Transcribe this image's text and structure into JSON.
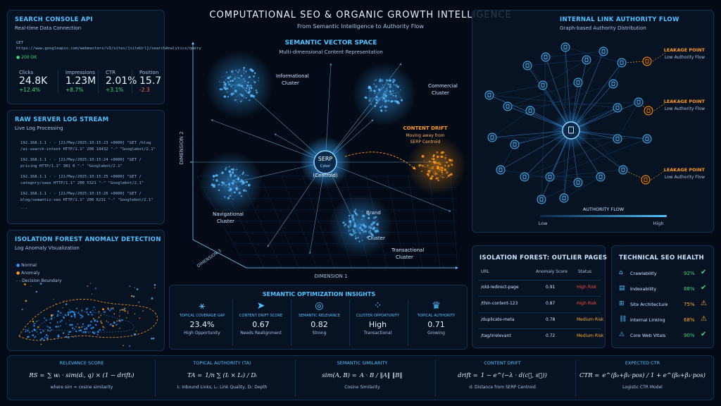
{
  "header": {
    "title": "COMPUTATIONAL SEO & ORGANIC GROWTH INTELLIGENCE",
    "subtitle": "From Semantic Intelligence to Authority Flow"
  },
  "search_console": {
    "title": "SEARCH CONSOLE API",
    "subtitle": "Real-time Data Connection",
    "request": "GET https://www.googleapis.com/webmasters/v3/sites/{siteUrl}/searchAnalytics/query",
    "status": "200 OK",
    "metrics": [
      {
        "label": "Clicks",
        "value": "24.8K",
        "delta": "+12.4%"
      },
      {
        "label": "Impressions",
        "value": "1.23M",
        "delta": "+8.7%"
      },
      {
        "label": "CTR",
        "value": "2.01%",
        "delta": "+3.1%"
      },
      {
        "label": "Position",
        "value": "15.7",
        "delta": "-2.3"
      }
    ]
  },
  "server_logs": {
    "title": "RAW SERVER LOG STREAM",
    "subtitle": "Live Log Processing",
    "lines": [
      [
        "192.168.1.1 - - [21/May/2025:10:15:23 +0000] \"GET /blog",
        "/ai-search-intent HTTP/1.1\" 200 18432 \"-\" \"Googlebot/2.1\""
      ],
      [
        "192.168.1.1 - - [21/May/2025:10:15:24 +0000] \"GET /",
        "pricing HTTP/1.1\" 301 0 \"-\" \"Googlebot/2.1\""
      ],
      [
        "192.168.1.1 - - [21/May/2025:10:15:25 +0000] \"GET /",
        "category/saas HTTP/1.1\" 200 5321 \"-\" \"Googlebot/2.1\""
      ],
      [
        "192.168.1.1 - - [21/May/2025:10:15:26 +0000] \"GET /",
        "blog/semantic-seo HTTP/1.1\" 200 6231 \"-\" \"Googlebot/2.1\""
      ]
    ],
    "ellipsis": "..."
  },
  "anomaly": {
    "title": "ISOLATION FOREST ANOMALY DETECTION",
    "subtitle": "Log Anomaly Visualization",
    "legend": [
      "Normal",
      "Anomaly",
      "Decision Boundary"
    ]
  },
  "vector_space": {
    "title": "SEMANTIC VECTOR SPACE",
    "subtitle": "Multi-dimensional Content Representation",
    "axis_y": "DIMENSION 2",
    "axis_x": "DIMENSION 1",
    "axis_z": "DIMENSION 3",
    "center_top": "SERP",
    "center_mid": "Cyber",
    "center_bottom": "(Centroid)",
    "clusters": {
      "informational": [
        "Informational",
        "Cluster"
      ],
      "commercial": [
        "Commercial",
        "Cluster"
      ],
      "navigational": [
        "Navigational",
        "Cluster"
      ],
      "brand": [
        "Brand",
        "Cluster"
      ],
      "transactional": [
        "Transactional",
        "Cluster"
      ]
    },
    "drift": {
      "title": "CONTENT DRIFT",
      "line1": "Moving away from",
      "line2": "SERP Centroid"
    }
  },
  "link_authority": {
    "title": "INTERNAL LINK AUTHORITY FLOW",
    "subtitle": "Graph-based Authority Distribution",
    "leakage_title": "LEAKAGE POINT",
    "leakage_sub": "Low Authority Flow",
    "flow_label": "AUTHORITY FLOW",
    "low": "Low",
    "high": "High"
  },
  "insights": {
    "title": "SEMANTIC OPTIMIZATION INSIGHTS",
    "cards": [
      {
        "label": "TOPICAL COVERAGE GAP",
        "value": "23.4%",
        "sub": "High Opportunity",
        "icon": "network-icon"
      },
      {
        "label": "CONTENT DRIFT SCORE",
        "value": "0.67",
        "sub": "Needs Realignment",
        "icon": "send-icon"
      },
      {
        "label": "SEMANTIC RELEVANCE",
        "value": "0.82",
        "sub": "Strong",
        "icon": "target-icon"
      },
      {
        "label": "CLUSTER OPPORTUNITY",
        "value": "High",
        "sub": "Transactional",
        "icon": "cluster-icon"
      },
      {
        "label": "TOPICAL AUTHORITY",
        "value": "0.71",
        "sub": "Growing",
        "icon": "crown-icon"
      }
    ]
  },
  "outliers": {
    "title": "ISOLATION FOREST: OUTLIER PAGES",
    "headers": [
      "URL",
      "Anomaly Score",
      "Status"
    ],
    "rows": [
      {
        "url": "/old-redirect-page",
        "score": "0.91",
        "status": "High Risk",
        "level": "high"
      },
      {
        "url": "/thin-content-123",
        "score": "0.87",
        "status": "High Risk",
        "level": "high"
      },
      {
        "url": "/duplicate-meta",
        "score": "0.78",
        "status": "Medium Risk",
        "level": "med"
      },
      {
        "url": "/tag/irrelevant",
        "score": "0.72",
        "status": "Medium Risk",
        "level": "med"
      }
    ]
  },
  "tech_health": {
    "title": "TECHNICAL SEO HEALTH",
    "rows": [
      {
        "label": "Crawlability",
        "value": "92%",
        "state": "ok",
        "icon": "home-icon"
      },
      {
        "label": "Indexability",
        "value": "88%",
        "state": "ok",
        "icon": "document-icon"
      },
      {
        "label": "Site Architecture",
        "value": "75%",
        "state": "warn",
        "icon": "sitemap-icon"
      },
      {
        "label": "Internal Linking",
        "value": "68%",
        "state": "warn",
        "icon": "link-icon"
      },
      {
        "label": "Core Web Vitals",
        "value": "90%",
        "state": "ok",
        "icon": "vitals-icon"
      }
    ]
  },
  "formulas": [
    {
      "title": "RELEVANCE SCORE",
      "lhs": "RS =",
      "rhs": "∑ wᵢ · sim(dᵢ, q) × (1 − driftᵢ)",
      "note": "where sim = cosine similarity"
    },
    {
      "title": "TOPICAL AUTHORITY (TA)",
      "lhs": "TA =",
      "rhs": "1/n ∑ (Iᵢ × Lᵢ) / Dᵢ",
      "note": "Iᵢ: Inbound Links,  Lᵢ: Link Quality,  Dᵢ: Depth"
    },
    {
      "title": "SEMANTIC SIMILARITY",
      "lhs": "sim(A, B) =",
      "rhs": "A · B / ‖A‖ ‖B‖",
      "note": "Cosine Similarity"
    },
    {
      "title": "CONTENT DRIFT",
      "lhs": "drift =",
      "rhs": "1 − e^(−λ · d(c⃗, s⃗))",
      "note": "d: Distance from SERP Centroid"
    },
    {
      "title": "EXPECTED CTR",
      "lhs": "CTR =",
      "rhs": "e^(β₀+β₁·pos) / 1 + e^(β₀+β₁·pos)",
      "note": "Logistic CTR Model"
    }
  ],
  "colors": {
    "accent": "#4fc3ff",
    "background": "#050b16",
    "positive": "#3ddc84",
    "negative": "#ff6b4a",
    "warning": "#ffae2b",
    "anomaly": "#ff9a1f"
  }
}
